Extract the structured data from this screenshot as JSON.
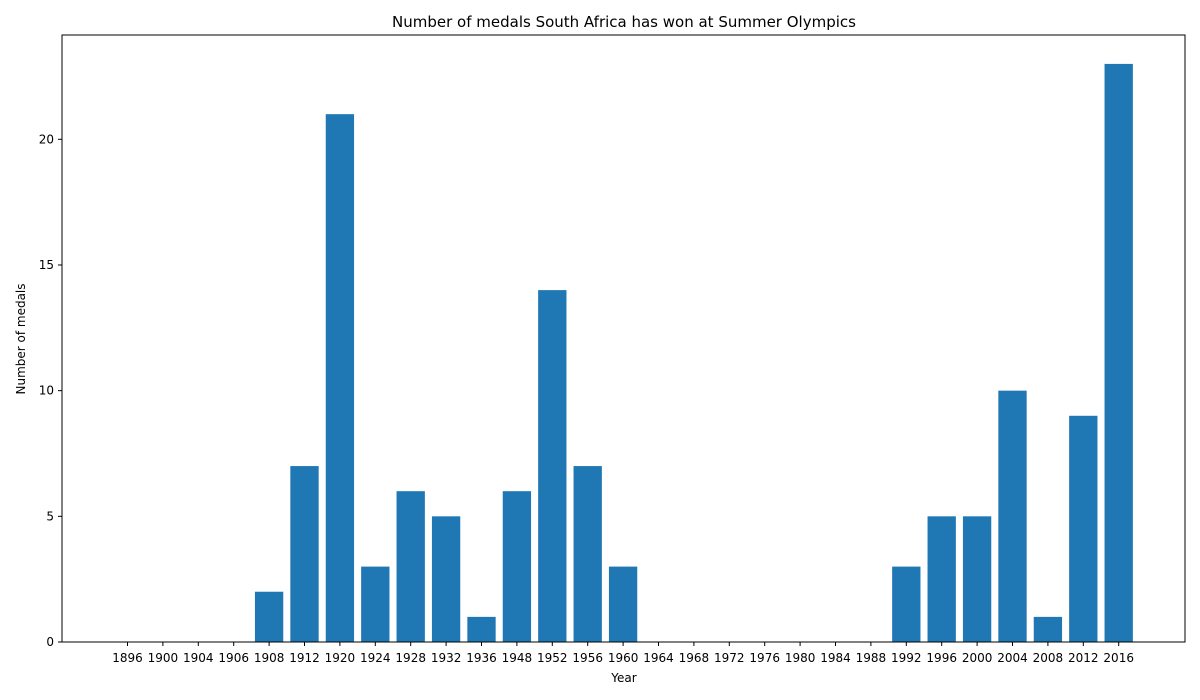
{
  "chart_data": {
    "type": "bar",
    "title": "Number of medals South Africa has won at Summer Olympics",
    "xlabel": "Year",
    "ylabel": "Number of medals",
    "categories": [
      "1896",
      "1900",
      "1904",
      "1906",
      "1908",
      "1912",
      "1920",
      "1924",
      "1928",
      "1932",
      "1936",
      "1948",
      "1952",
      "1956",
      "1960",
      "1964",
      "1968",
      "1972",
      "1976",
      "1980",
      "1984",
      "1988",
      "1992",
      "1996",
      "2000",
      "2004",
      "2008",
      "2012",
      "2016"
    ],
    "values": [
      0,
      0,
      0,
      0,
      2,
      7,
      21,
      3,
      6,
      5,
      1,
      6,
      14,
      7,
      3,
      0,
      0,
      0,
      0,
      0,
      0,
      0,
      3,
      5,
      5,
      10,
      1,
      9,
      23
    ],
    "ylim": [
      0,
      24.15
    ],
    "yticks": [
      0,
      5,
      10,
      15,
      20
    ],
    "grid": false,
    "bar_color": "#1f77b4"
  }
}
